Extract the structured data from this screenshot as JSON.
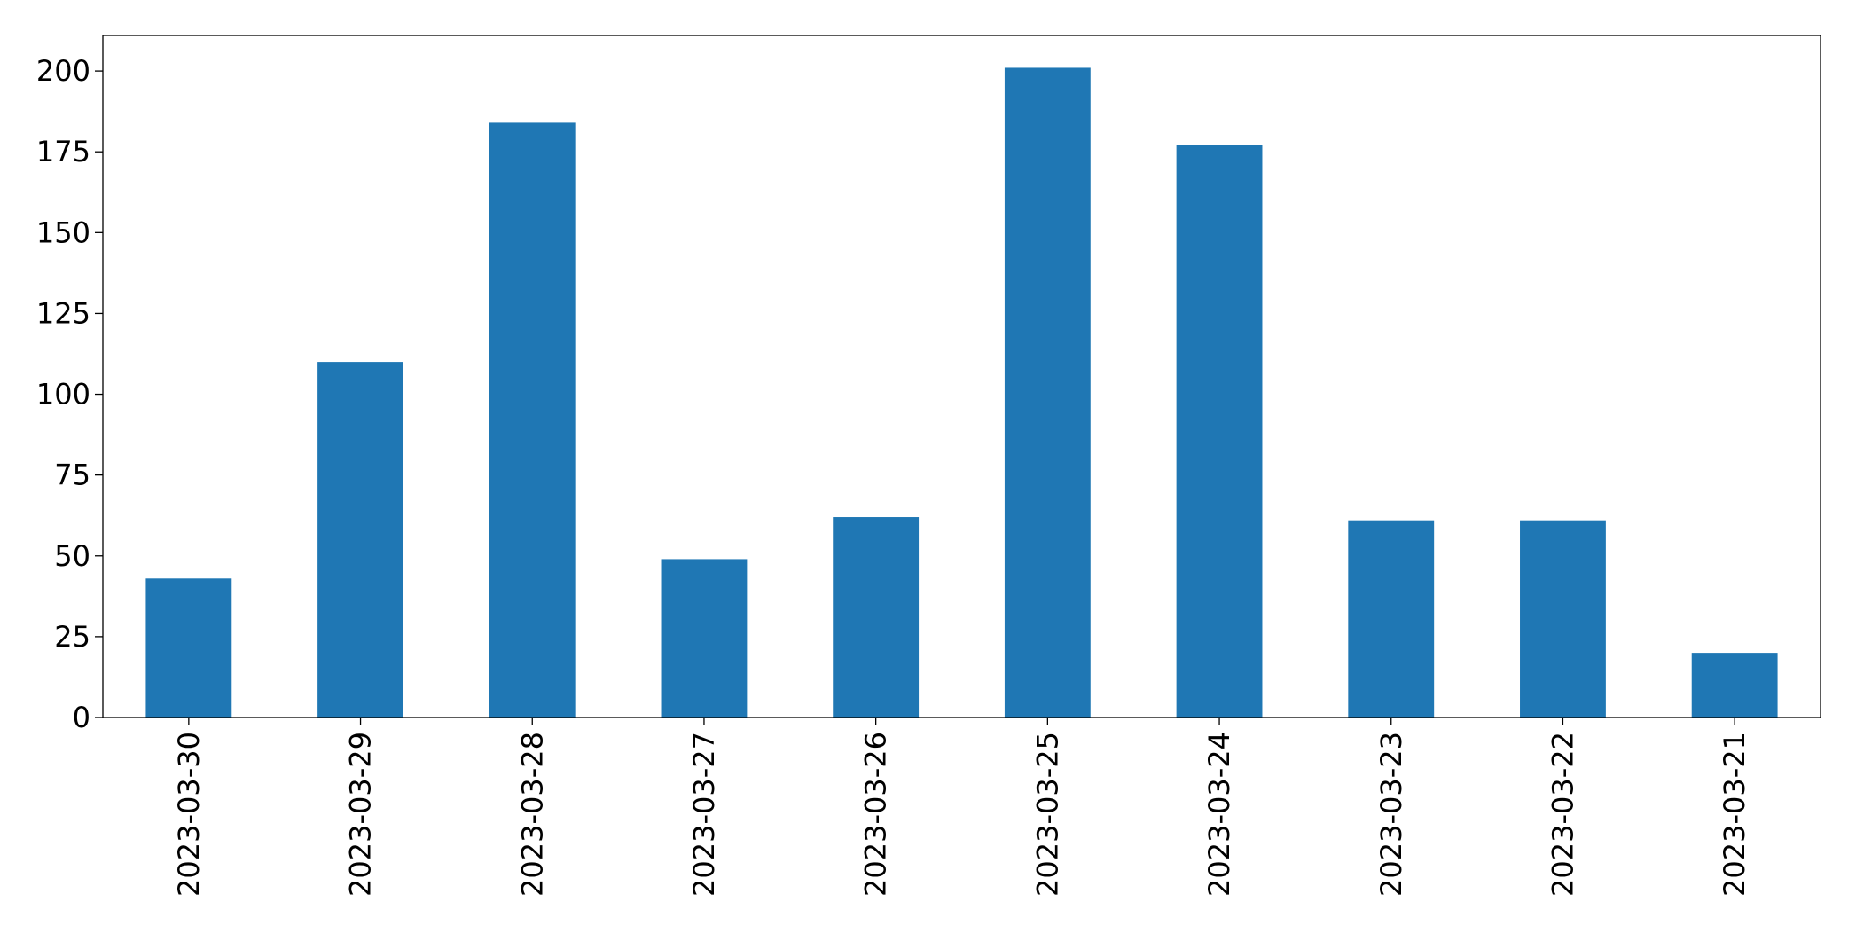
{
  "chart_data": {
    "type": "bar",
    "categories": [
      "2023-03-30",
      "2023-03-29",
      "2023-03-28",
      "2023-03-27",
      "2023-03-26",
      "2023-03-25",
      "2023-03-24",
      "2023-03-23",
      "2023-03-22",
      "2023-03-21"
    ],
    "values": [
      43,
      110,
      184,
      49,
      62,
      201,
      177,
      61,
      61,
      20
    ],
    "color": "#1f77b4",
    "ylim": [
      0,
      211
    ],
    "yticks": [
      0,
      25,
      50,
      75,
      100,
      125,
      150,
      175,
      200
    ],
    "grid": false
  }
}
